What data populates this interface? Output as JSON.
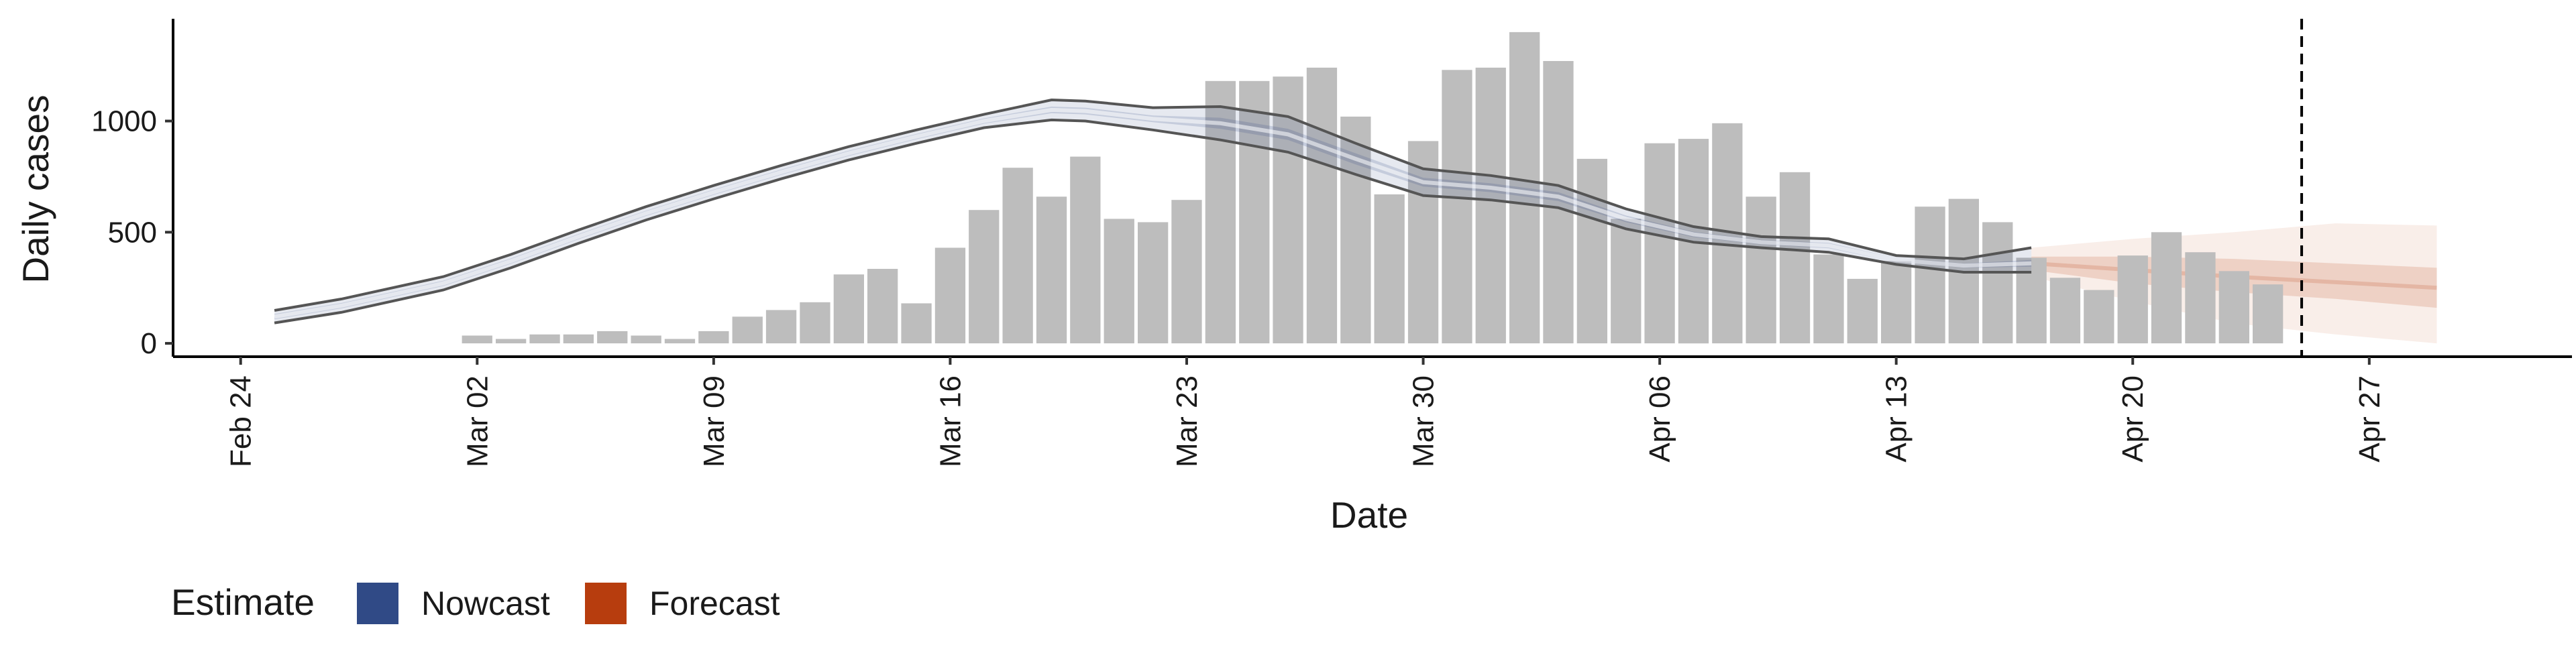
{
  "chart_data": {
    "type": "bar",
    "title": "",
    "xlabel": "Date",
    "ylabel": "Daily cases",
    "grid": false,
    "legend_position": "bottom-left",
    "legend": {
      "title": "Estimate",
      "items": [
        {
          "label": "Nowcast",
          "color": "#304a86"
        },
        {
          "label": "Forecast",
          "color": "#b73d0e"
        }
      ]
    },
    "x_range": [
      "2020-02-22",
      "2020-05-03"
    ],
    "x_ticks": [
      {
        "date": "2020-02-24",
        "label": "Feb 24"
      },
      {
        "date": "2020-03-02",
        "label": "Mar 02"
      },
      {
        "date": "2020-03-09",
        "label": "Mar 09"
      },
      {
        "date": "2020-03-16",
        "label": "Mar 16"
      },
      {
        "date": "2020-03-23",
        "label": "Mar 23"
      },
      {
        "date": "2020-03-30",
        "label": "Mar 30"
      },
      {
        "date": "2020-04-06",
        "label": "Apr 06"
      },
      {
        "date": "2020-04-13",
        "label": "Apr 13"
      },
      {
        "date": "2020-04-20",
        "label": "Apr 20"
      },
      {
        "date": "2020-04-27",
        "label": "Apr 27"
      }
    ],
    "ylim": [
      -60,
      1460
    ],
    "y_ticks": [
      0,
      500,
      1000
    ],
    "y_tick_labels": [
      "0",
      "500",
      "1000"
    ],
    "vline_date": "2020-04-25",
    "bars": {
      "color": "#bdbdbd",
      "dates": [
        "2020-03-02",
        "2020-03-03",
        "2020-03-04",
        "2020-03-05",
        "2020-03-06",
        "2020-03-07",
        "2020-03-08",
        "2020-03-09",
        "2020-03-10",
        "2020-03-11",
        "2020-03-12",
        "2020-03-13",
        "2020-03-14",
        "2020-03-15",
        "2020-03-16",
        "2020-03-17",
        "2020-03-18",
        "2020-03-19",
        "2020-03-20",
        "2020-03-21",
        "2020-03-22",
        "2020-03-23",
        "2020-03-24",
        "2020-03-25",
        "2020-03-26",
        "2020-03-27",
        "2020-03-28",
        "2020-03-29",
        "2020-03-30",
        "2020-03-31",
        "2020-04-01",
        "2020-04-02",
        "2020-04-03",
        "2020-04-04",
        "2020-04-05",
        "2020-04-06",
        "2020-04-07",
        "2020-04-08",
        "2020-04-09",
        "2020-04-10",
        "2020-04-11",
        "2020-04-12",
        "2020-04-13",
        "2020-04-14",
        "2020-04-15",
        "2020-04-16",
        "2020-04-17",
        "2020-04-18",
        "2020-04-19",
        "2020-04-20",
        "2020-04-21",
        "2020-04-22",
        "2020-04-23",
        "2020-04-24",
        "2020-04-25"
      ],
      "values": [
        35,
        20,
        40,
        40,
        55,
        35,
        20,
        55,
        120,
        150,
        185,
        310,
        335,
        180,
        430,
        600,
        790,
        660,
        840,
        560,
        545,
        645,
        1180,
        1180,
        1200,
        1240,
        1020,
        670,
        910,
        1230,
        1240,
        1400,
        1270,
        830,
        560,
        900,
        920,
        990,
        660,
        770,
        400,
        290,
        370,
        615,
        650,
        545,
        385,
        295,
        240,
        395,
        500,
        410,
        325,
        265,
        0
      ]
    },
    "nowcast": {
      "color": "#304a86",
      "dates": [
        "2020-02-25",
        "2020-02-27",
        "2020-03-01",
        "2020-03-03",
        "2020-03-05",
        "2020-03-07",
        "2020-03-09",
        "2020-03-11",
        "2020-03-13",
        "2020-03-15",
        "2020-03-17",
        "2020-03-19",
        "2020-03-20",
        "2020-03-22",
        "2020-03-24",
        "2020-03-26",
        "2020-03-28",
        "2020-03-30",
        "2020-04-01",
        "2020-04-03",
        "2020-04-05",
        "2020-04-07",
        "2020-04-09",
        "2020-04-11",
        "2020-04-13",
        "2020-04-15",
        "2020-04-17"
      ],
      "median": [
        120,
        170,
        270,
        370,
        480,
        585,
        680,
        770,
        855,
        930,
        1000,
        1050,
        1045,
        1010,
        990,
        940,
        830,
        725,
        700,
        660,
        560,
        490,
        455,
        440,
        375,
        350,
        360
      ],
      "outer_lower": [
        92,
        140,
        240,
        340,
        450,
        555,
        650,
        740,
        825,
        900,
        970,
        1005,
        1000,
        960,
        915,
        860,
        760,
        665,
        645,
        610,
        515,
        455,
        430,
        410,
        355,
        320,
        320
      ],
      "outer_upper": [
        148,
        200,
        300,
        400,
        510,
        615,
        710,
        800,
        885,
        960,
        1030,
        1095,
        1090,
        1060,
        1065,
        1020,
        900,
        785,
        755,
        710,
        605,
        525,
        480,
        470,
        395,
        380,
        430
      ],
      "inner_lower": [
        108,
        158,
        258,
        358,
        468,
        573,
        668,
        758,
        843,
        918,
        988,
        1035,
        1030,
        995,
        965,
        915,
        805,
        705,
        680,
        640,
        545,
        478,
        445,
        428,
        366,
        340,
        345
      ],
      "inner_upper": [
        132,
        182,
        282,
        382,
        492,
        597,
        692,
        782,
        867,
        942,
        1012,
        1065,
        1060,
        1025,
        1015,
        965,
        855,
        745,
        720,
        680,
        575,
        502,
        465,
        452,
        384,
        360,
        375
      ]
    },
    "forecast": {
      "color": "#b73d0e",
      "dates": [
        "2020-04-17",
        "2020-04-20",
        "2020-04-23",
        "2020-04-26",
        "2020-04-29"
      ],
      "median": [
        360,
        330,
        300,
        275,
        250
      ],
      "outer_lower": [
        300,
        190,
        90,
        40,
        0
      ],
      "outer_upper": [
        430,
        470,
        500,
        540,
        530
      ],
      "inner_lower": [
        330,
        270,
        230,
        200,
        160
      ],
      "inner_upper": [
        390,
        390,
        380,
        360,
        340
      ]
    }
  }
}
